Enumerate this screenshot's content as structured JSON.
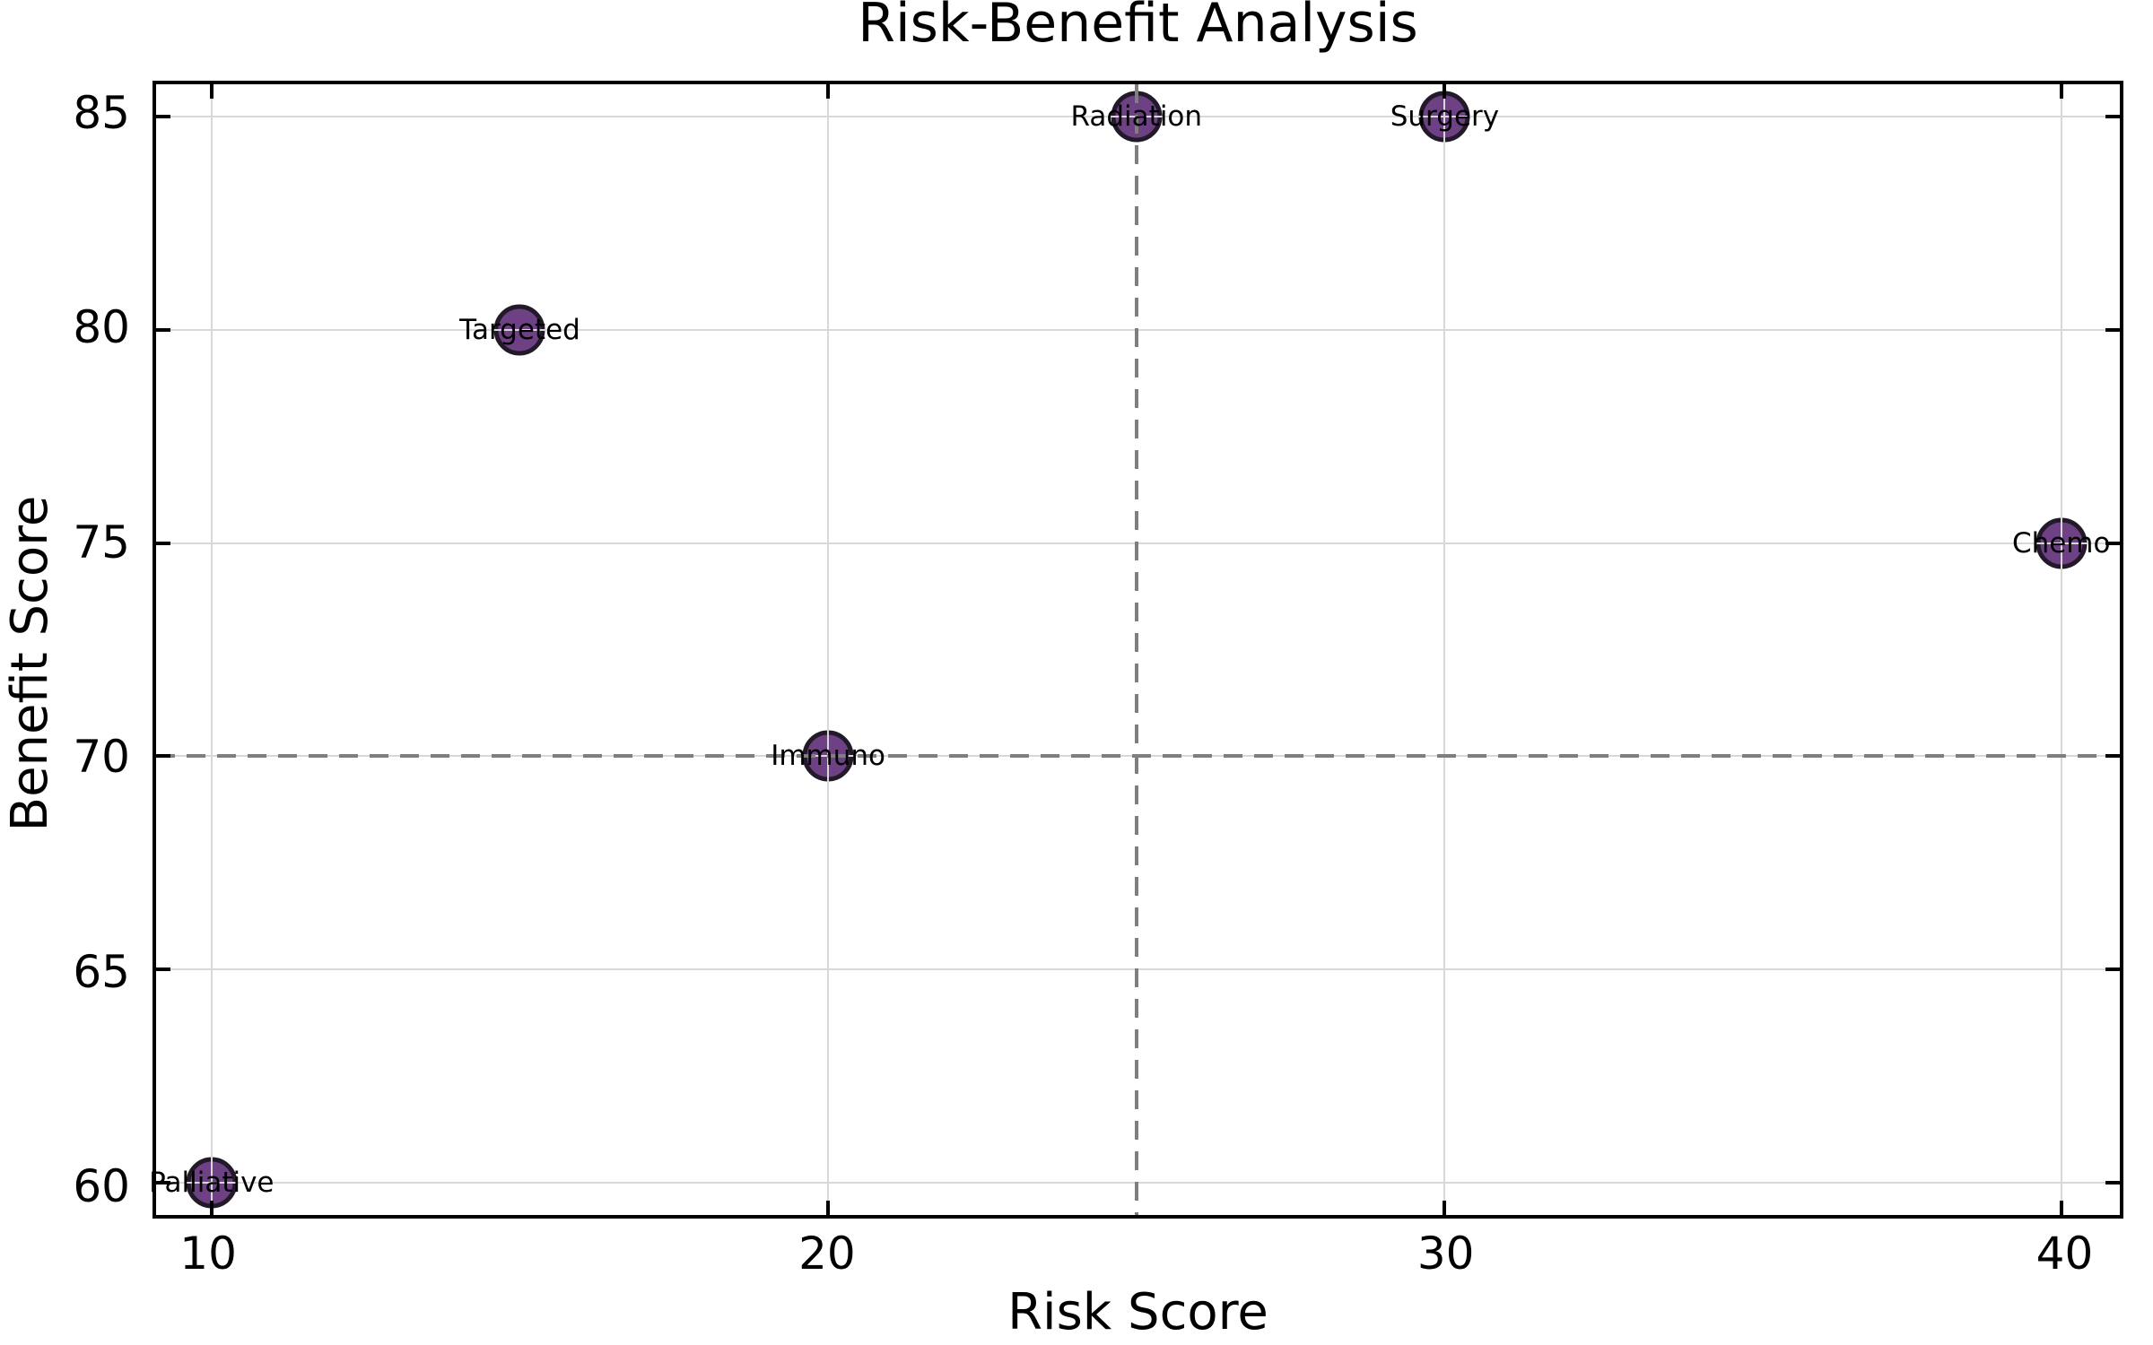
{
  "chart_data": {
    "type": "scatter",
    "title": "Risk-Benefit Analysis",
    "xlabel": "Risk Score",
    "ylabel": "Benefit Score",
    "xlim": [
      9.1,
      40.95
    ],
    "ylim": [
      59.25,
      85.75
    ],
    "xticks": [
      10,
      20,
      30,
      40
    ],
    "yticks": [
      60,
      65,
      70,
      75,
      80,
      85
    ],
    "grid": true,
    "legend": "none",
    "points": [
      {
        "label": "Palliative",
        "x": 10,
        "y": 60
      },
      {
        "label": "Targeted",
        "x": 15,
        "y": 80
      },
      {
        "label": "Immuno",
        "x": 20,
        "y": 70
      },
      {
        "label": "Radiation",
        "x": 25,
        "y": 85
      },
      {
        "label": "Surgery",
        "x": 30,
        "y": 85
      },
      {
        "label": "Chemo",
        "x": 40,
        "y": 75
      }
    ],
    "reference_lines": [
      {
        "axis": "x",
        "value": 25,
        "style": "dashed"
      },
      {
        "axis": "y",
        "value": 70,
        "style": "dashed"
      }
    ],
    "colors": {
      "point_fill": "#6d4183",
      "point_edge": "#231a29",
      "grid": "#d8d8d8",
      "dash": "#7f7f7f",
      "spine": "#000000",
      "text": "#000000",
      "background": "#ffffff"
    }
  }
}
